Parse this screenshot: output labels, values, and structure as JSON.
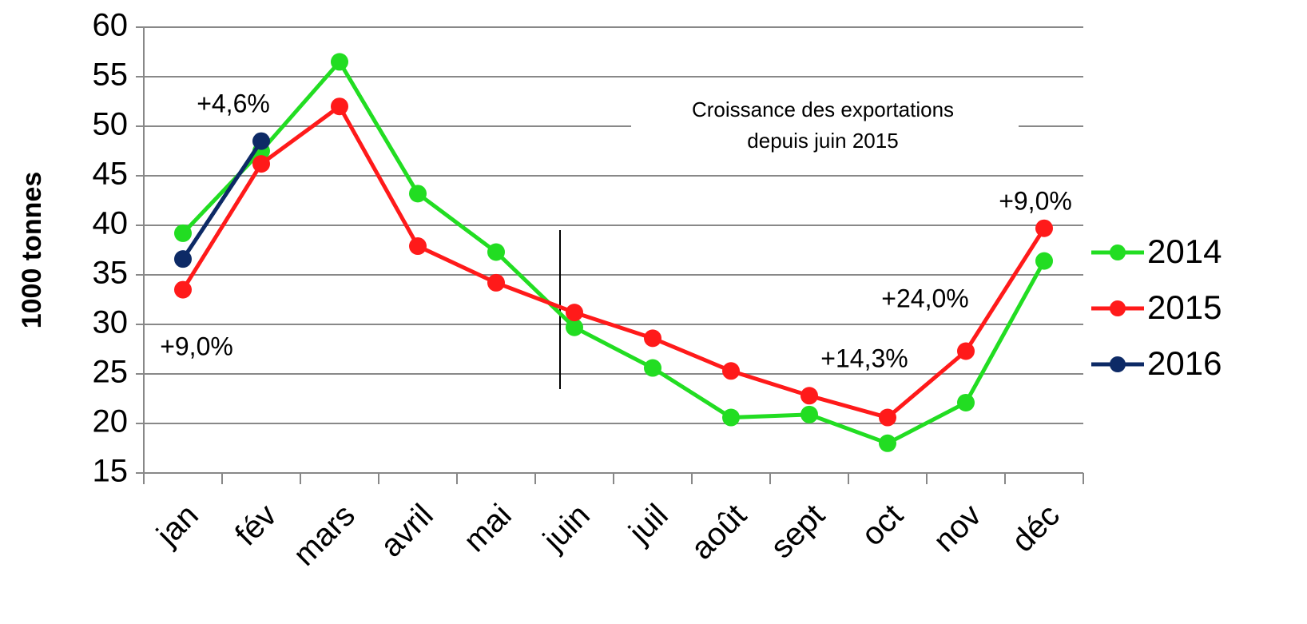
{
  "chart_data": {
    "type": "line",
    "ylabel": "1000 tonnes",
    "categories": [
      "jan",
      "fév",
      "mars",
      "avril",
      "mai",
      "juin",
      "juil",
      "août",
      "sept",
      "oct",
      "nov",
      "déc"
    ],
    "series": [
      {
        "name": "2014",
        "color": "#22dd22",
        "values": [
          39.2,
          47.5,
          56.5,
          43.2,
          37.3,
          29.7,
          25.6,
          20.6,
          20.9,
          18.0,
          22.1,
          36.4
        ]
      },
      {
        "name": "2015",
        "color": "#ff1a1a",
        "values": [
          33.5,
          46.2,
          52.0,
          37.9,
          34.2,
          31.2,
          28.6,
          25.3,
          22.8,
          20.6,
          27.3,
          39.7
        ]
      },
      {
        "name": "2016",
        "color": "#0d2a66",
        "values": [
          36.6,
          48.5,
          null,
          null,
          null,
          null,
          null,
          null,
          null,
          null,
          null,
          null
        ]
      }
    ],
    "ylim": [
      15,
      60
    ],
    "yticks": [
      15,
      20,
      25,
      30,
      35,
      40,
      45,
      50,
      55,
      60
    ],
    "grid": true,
    "annotations": [
      "+4,6%",
      "+9,0%",
      "+9,0%",
      "+24,0%",
      "+14,3%"
    ],
    "note": [
      "Croissance des exportations",
      "depuis juin 2015"
    ]
  }
}
